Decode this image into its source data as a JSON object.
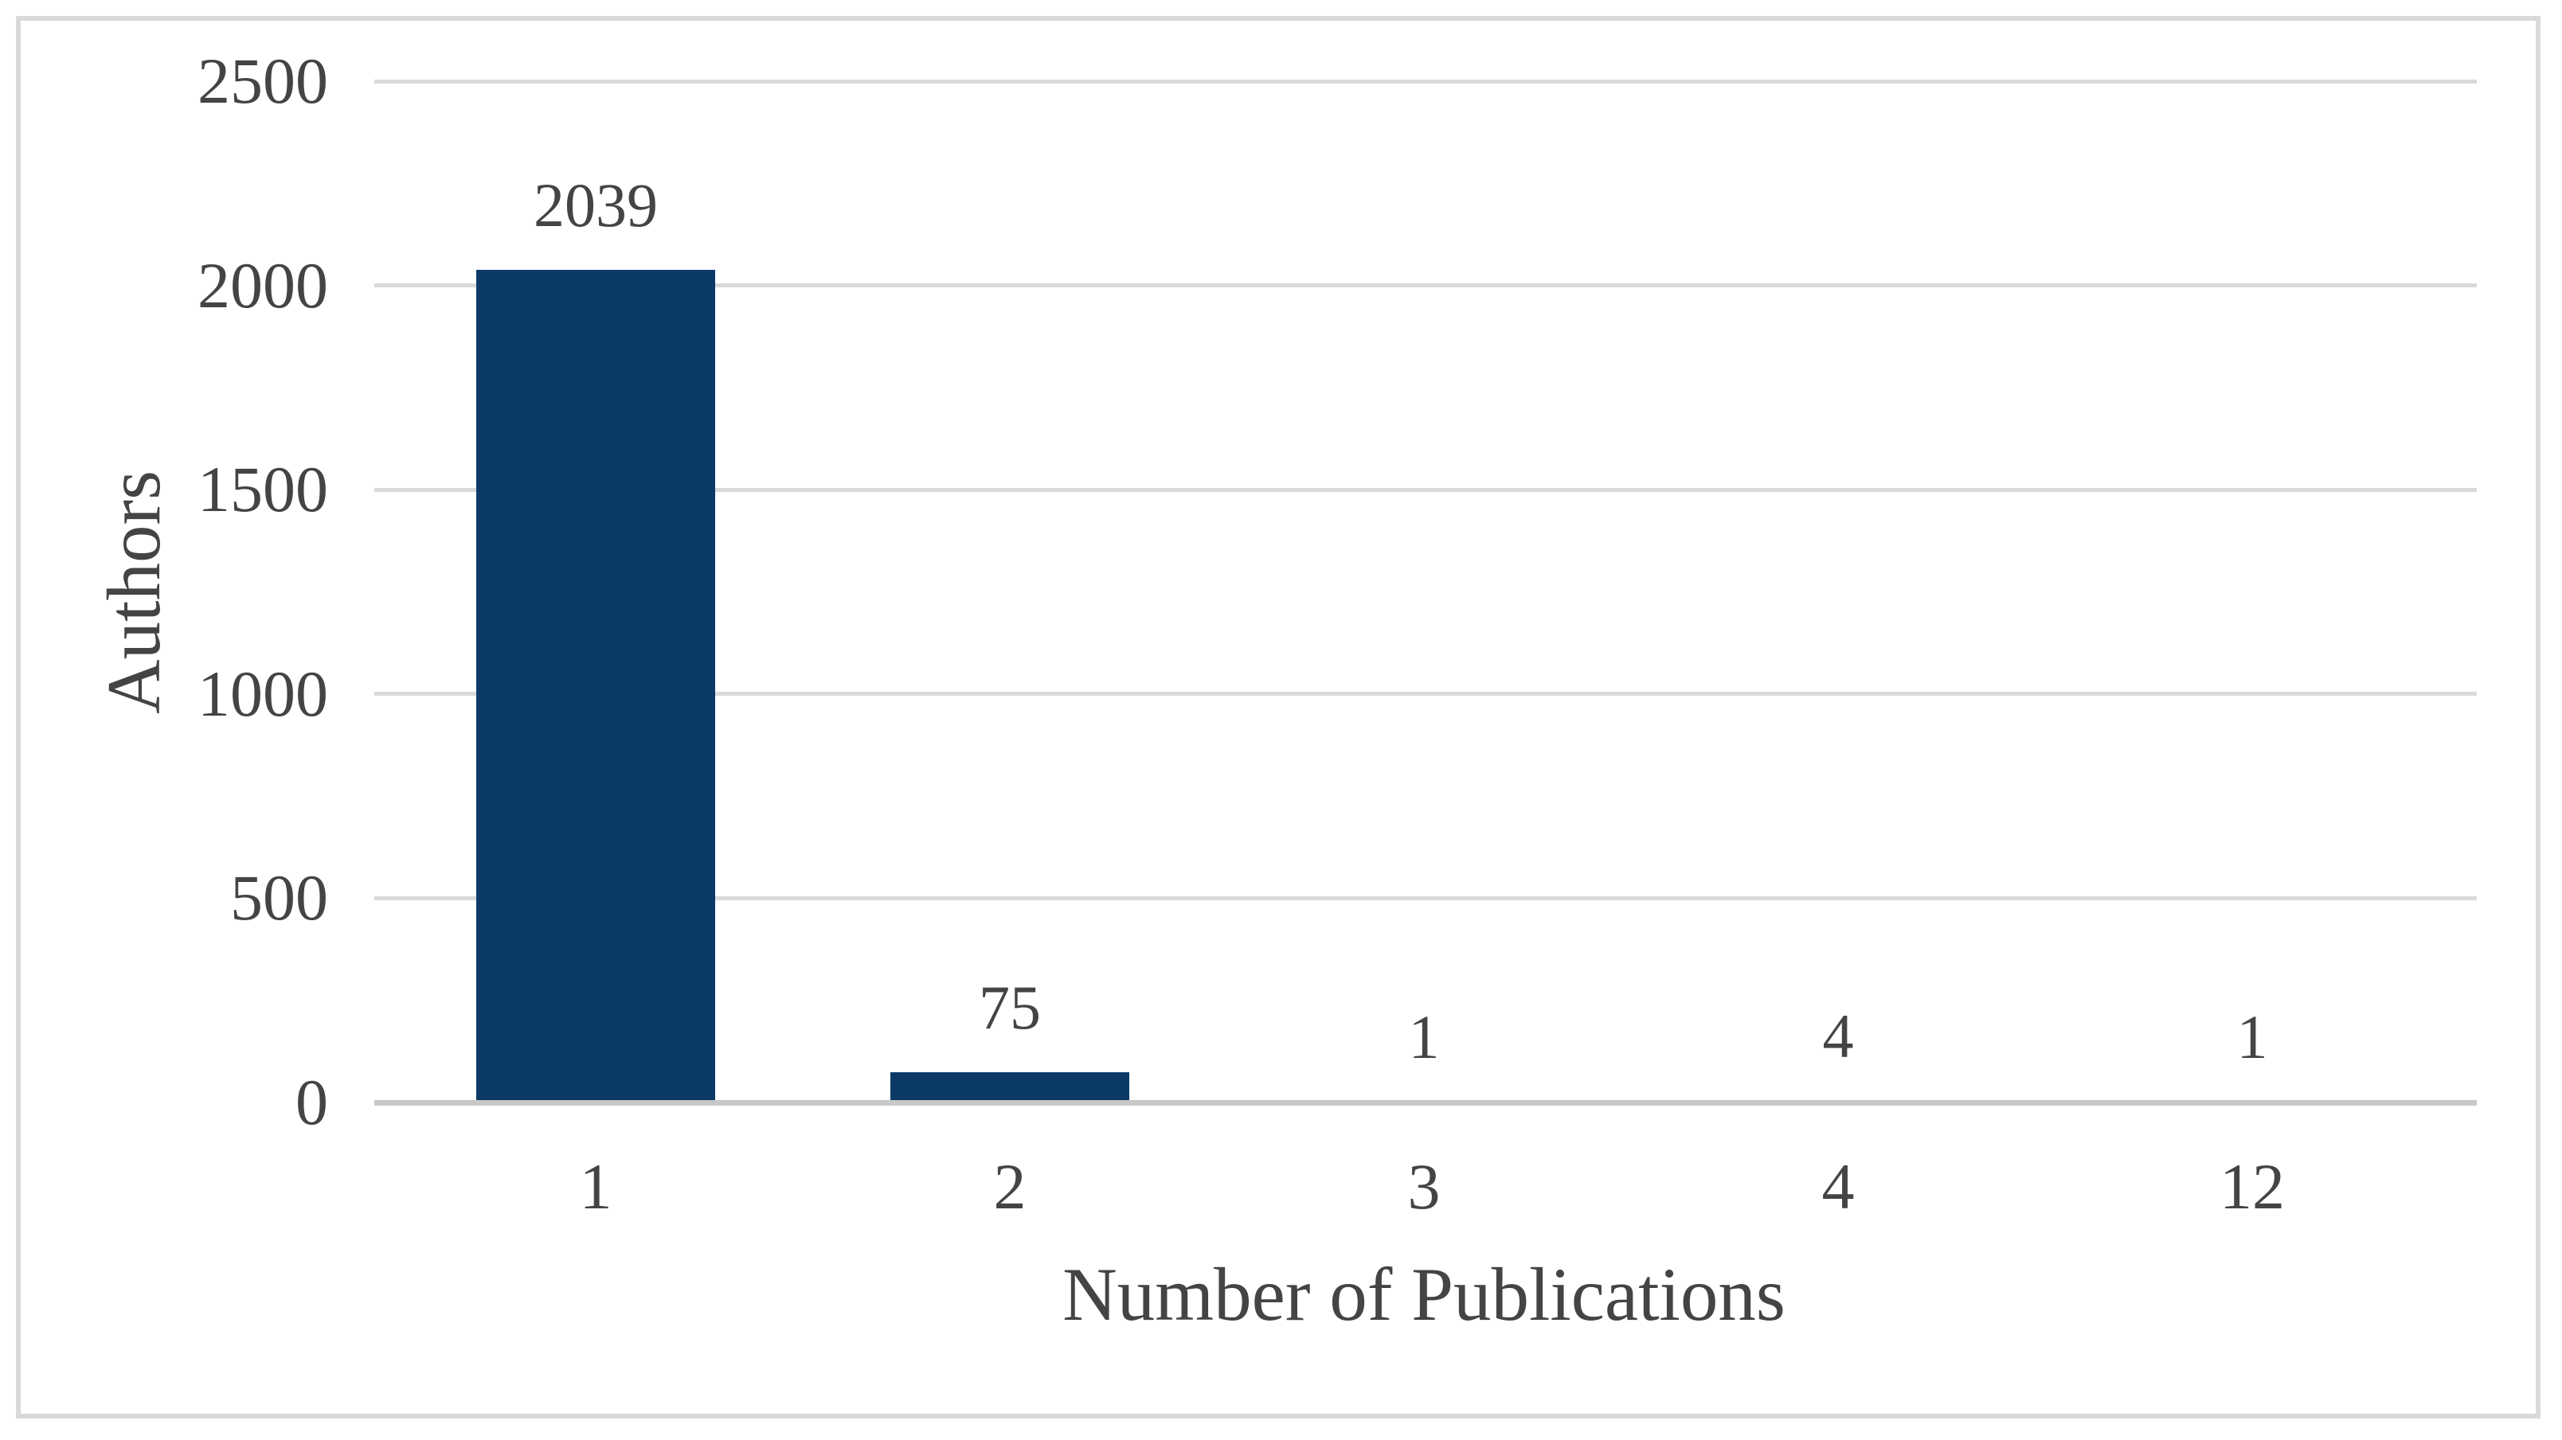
{
  "chart_data": {
    "type": "bar",
    "categories": [
      "1",
      "2",
      "3",
      "4",
      "12"
    ],
    "values": [
      2039,
      75,
      1,
      4,
      1
    ],
    "bar_labels": [
      "2039",
      "75",
      "1",
      "4",
      "1"
    ],
    "title": "",
    "xlabel": "Number of Publications",
    "ylabel": "Authors",
    "yticks": [
      0,
      500,
      1000,
      1500,
      2000,
      2500
    ],
    "ylim": [
      0,
      2500
    ],
    "grid": "horizontal",
    "legend": "none",
    "colors": {
      "bar": "#0b3a67",
      "gridline": "#d9d9d9",
      "axis_line": "#c8c8c8",
      "text": "#444444",
      "frame_border": "#d9d9d9",
      "background": "#ffffff"
    }
  }
}
